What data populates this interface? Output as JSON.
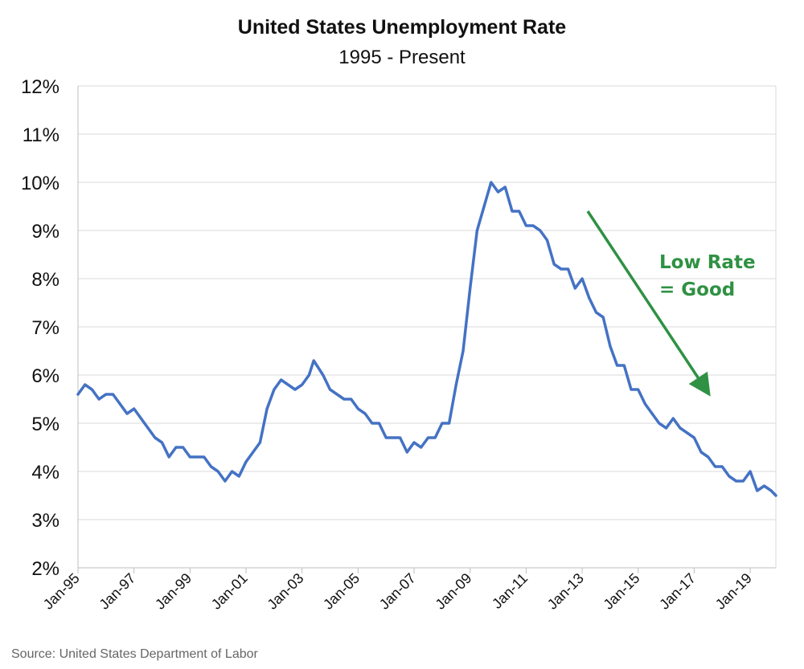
{
  "chart_data": {
    "type": "line",
    "title": "United States Unemployment Rate",
    "subtitle": "1995 - Present",
    "xlabel": "",
    "ylabel": "",
    "ylim": [
      2,
      12
    ],
    "y_ticks": [
      "2%",
      "3%",
      "4%",
      "5%",
      "6%",
      "7%",
      "8%",
      "9%",
      "10%",
      "11%",
      "12%"
    ],
    "x_ticks": [
      "Jan-95",
      "Jan-97",
      "Jan-99",
      "Jan-01",
      "Jan-03",
      "Jan-05",
      "Jan-07",
      "Jan-09",
      "Jan-11",
      "Jan-13",
      "Jan-15",
      "Jan-17",
      "Jan-19"
    ],
    "xlim": [
      "1995-01",
      "2019-12"
    ],
    "grid": true,
    "line_color": "#4472c4",
    "series": [
      {
        "x": [
          "1995-01",
          "1995-04",
          "1995-07",
          "1995-10",
          "1996-01",
          "1996-04",
          "1996-07",
          "1996-10",
          "1997-01",
          "1997-04",
          "1997-07",
          "1997-10",
          "1998-01",
          "1998-04",
          "1998-07",
          "1998-10",
          "1999-01",
          "1999-04",
          "1999-07",
          "1999-10",
          "2000-01",
          "2000-04",
          "2000-07",
          "2000-10",
          "2001-01",
          "2001-04",
          "2001-07",
          "2001-10",
          "2002-01",
          "2002-04",
          "2002-07",
          "2002-10",
          "2003-01",
          "2003-04",
          "2003-06",
          "2003-10",
          "2004-01",
          "2004-04",
          "2004-07",
          "2004-10",
          "2005-01",
          "2005-04",
          "2005-07",
          "2005-10",
          "2006-01",
          "2006-04",
          "2006-07",
          "2006-10",
          "2007-01",
          "2007-04",
          "2007-07",
          "2007-10",
          "2008-01",
          "2008-04",
          "2008-07",
          "2008-10",
          "2009-01",
          "2009-04",
          "2009-07",
          "2009-10",
          "2010-01",
          "2010-04",
          "2010-07",
          "2010-10",
          "2011-01",
          "2011-04",
          "2011-07",
          "2011-10",
          "2012-01",
          "2012-04",
          "2012-07",
          "2012-10",
          "2013-01",
          "2013-04",
          "2013-07",
          "2013-10",
          "2014-01",
          "2014-04",
          "2014-07",
          "2014-10",
          "2015-01",
          "2015-04",
          "2015-07",
          "2015-10",
          "2016-01",
          "2016-04",
          "2016-07",
          "2016-10",
          "2017-01",
          "2017-04",
          "2017-07",
          "2017-10",
          "2018-01",
          "2018-04",
          "2018-07",
          "2018-10",
          "2019-01",
          "2019-04",
          "2019-07",
          "2019-10",
          "2019-12"
        ],
        "values": [
          5.6,
          5.8,
          5.7,
          5.5,
          5.6,
          5.6,
          5.4,
          5.2,
          5.3,
          5.1,
          4.9,
          4.7,
          4.6,
          4.3,
          4.5,
          4.5,
          4.3,
          4.3,
          4.3,
          4.1,
          4.0,
          3.8,
          4.0,
          3.9,
          4.2,
          4.4,
          4.6,
          5.3,
          5.7,
          5.9,
          5.8,
          5.7,
          5.8,
          6.0,
          6.3,
          6.0,
          5.7,
          5.6,
          5.5,
          5.5,
          5.3,
          5.2,
          5.0,
          5.0,
          4.7,
          4.7,
          4.7,
          4.4,
          4.6,
          4.5,
          4.7,
          4.7,
          5.0,
          5.0,
          5.8,
          6.5,
          7.8,
          9.0,
          9.5,
          10.0,
          9.8,
          9.9,
          9.4,
          9.4,
          9.1,
          9.1,
          9.0,
          8.8,
          8.3,
          8.2,
          8.2,
          7.8,
          8.0,
          7.6,
          7.3,
          7.2,
          6.6,
          6.2,
          6.2,
          5.7,
          5.7,
          5.4,
          5.2,
          5.0,
          4.9,
          5.1,
          4.9,
          4.8,
          4.7,
          4.4,
          4.3,
          4.1,
          4.1,
          3.9,
          3.8,
          3.8,
          4.0,
          3.6,
          3.7,
          3.6,
          3.5
        ]
      }
    ],
    "annotations": [
      {
        "text_line1": "Low Rate",
        "text_line2": "= Good",
        "color": "#2f9143"
      }
    ],
    "source": "Source: United States Department of Labor"
  }
}
